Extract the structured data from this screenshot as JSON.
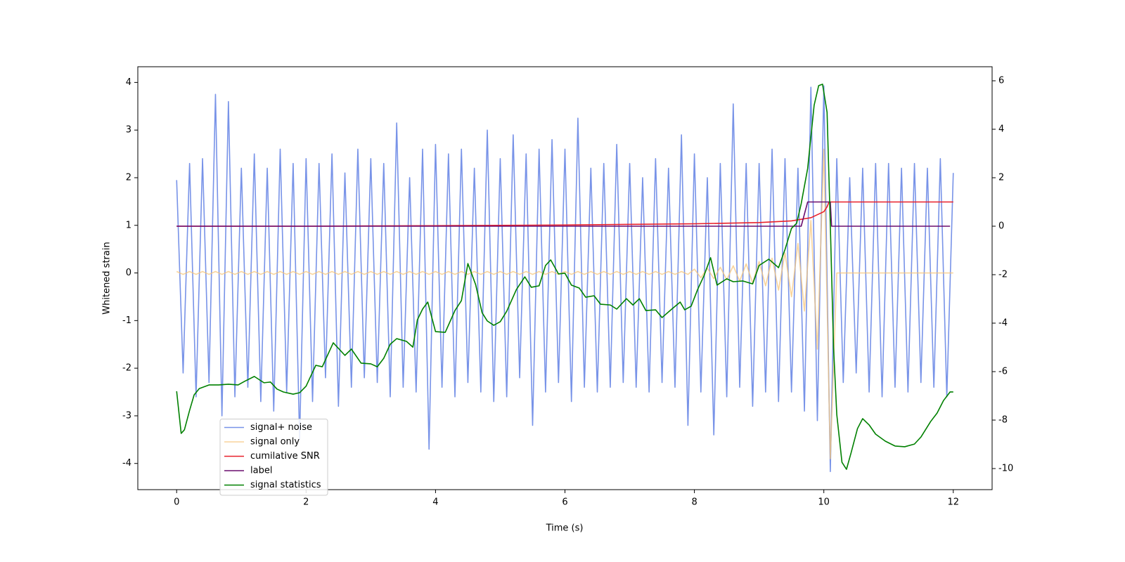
{
  "chart_data": {
    "type": "line",
    "xlabel": "Time (s)",
    "ylabel": "Whitened strain",
    "xlim": [
      -0.6,
      12.6
    ],
    "ylim": [
      -4.55,
      4.33
    ],
    "y2lim": [
      -10.87,
      6.58
    ],
    "xticks": [
      0,
      2,
      4,
      6,
      8,
      10,
      12
    ],
    "yticks": [
      -4,
      -3,
      -2,
      -1,
      0,
      1,
      2,
      3,
      4
    ],
    "y2ticks": [
      -10,
      -8,
      -6,
      -4,
      -2,
      0,
      2,
      4,
      6
    ],
    "legend": "lower left",
    "x": [
      0,
      0.1,
      0.2,
      0.3,
      0.4,
      0.5,
      0.6,
      0.7,
      0.8,
      0.9,
      1,
      1.1,
      1.2,
      1.3,
      1.4,
      1.5,
      1.6,
      1.7,
      1.8,
      1.9,
      2,
      2.1,
      2.2,
      2.3,
      2.4,
      2.5,
      2.6,
      2.7,
      2.8,
      2.9,
      3,
      3.1,
      3.2,
      3.3,
      3.4,
      3.5,
      3.6,
      3.7,
      3.8,
      3.9,
      4,
      4.1,
      4.2,
      4.3,
      4.4,
      4.5,
      4.6,
      4.7,
      4.8,
      4.9,
      5,
      5.1,
      5.2,
      5.3,
      5.4,
      5.5,
      5.6,
      5.7,
      5.8,
      5.9,
      6,
      6.1,
      6.2,
      6.3,
      6.4,
      6.5,
      6.6,
      6.7,
      6.8,
      6.9,
      7,
      7.1,
      7.2,
      7.3,
      7.4,
      7.5,
      7.6,
      7.7,
      7.8,
      7.9,
      8,
      8.1,
      8.2,
      8.3,
      8.4,
      8.5,
      8.6,
      8.7,
      8.8,
      8.9,
      9,
      9.1,
      9.2,
      9.3,
      9.4,
      9.5,
      9.6,
      9.7,
      9.8,
      9.9,
      10,
      10.1,
      10.2,
      10.3,
      10.4,
      10.5,
      10.6,
      10.7,
      10.8,
      10.9,
      11,
      11.1,
      11.2,
      11.3,
      11.4,
      11.5,
      11.6,
      11.7,
      11.8,
      11.9,
      12
    ],
    "series": [
      {
        "name": "signal+ noise",
        "color": "#7893e8",
        "values": [
          1.95,
          -2.1,
          2.3,
          -2.6,
          2.4,
          -2.3,
          3.75,
          -3.0,
          3.6,
          -2.6,
          2.2,
          -2.4,
          2.5,
          -2.7,
          2.2,
          -2.9,
          2.6,
          -2.5,
          2.3,
          -3.5,
          2.4,
          -2.7,
          2.3,
          -2.2,
          2.5,
          -2.8,
          2.1,
          -2.4,
          2.6,
          -2.2,
          2.4,
          -2.3,
          2.3,
          -2.6,
          3.15,
          -2.4,
          2.0,
          -2.5,
          2.6,
          -3.7,
          2.7,
          -2.4,
          2.5,
          -2.6,
          2.6,
          -2.3,
          2.2,
          -2.5,
          3.0,
          -2.7,
          2.4,
          -2.6,
          2.9,
          -2.2,
          2.5,
          -3.2,
          2.6,
          -2.5,
          2.8,
          -2.3,
          2.6,
          -2.7,
          3.25,
          -2.4,
          2.2,
          -2.5,
          2.3,
          -2.4,
          2.7,
          -2.3,
          2.3,
          -2.4,
          2.0,
          -2.5,
          2.4,
          -2.3,
          2.2,
          -2.4,
          2.9,
          -3.2,
          2.5,
          -2.5,
          2.0,
          -3.4,
          2.3,
          -2.6,
          3.55,
          -2.4,
          2.3,
          -2.8,
          2.3,
          -2.5,
          2.6,
          -2.7,
          2.4,
          -2.5,
          2.2,
          -2.9,
          3.9,
          -3.1,
          3.93,
          -4.17,
          2.4,
          -2.3,
          2.0,
          -2.1,
          2.2,
          -2.5,
          2.3,
          -2.6,
          2.3,
          -2.4,
          2.2,
          -2.5,
          2.3,
          -2.3,
          2.2,
          -2.4,
          2.4,
          -2.6,
          2.1
        ]
      },
      {
        "name": "signal only",
        "color": "#f7c57a",
        "values": [
          0.03,
          -0.03,
          0.03,
          -0.03,
          0.03,
          -0.03,
          0.03,
          -0.03,
          0.03,
          -0.03,
          0.03,
          -0.03,
          0.03,
          -0.03,
          0.03,
          -0.03,
          0.03,
          -0.03,
          0.03,
          -0.03,
          0.03,
          -0.03,
          0.03,
          -0.03,
          0.03,
          -0.03,
          0.03,
          -0.03,
          0.03,
          -0.03,
          0.03,
          -0.03,
          0.03,
          -0.03,
          0.03,
          -0.03,
          0.03,
          -0.03,
          0.03,
          -0.03,
          0.03,
          -0.03,
          0.03,
          -0.03,
          0.03,
          -0.03,
          0.03,
          -0.03,
          0.03,
          -0.03,
          0.03,
          -0.03,
          0.03,
          -0.03,
          0.03,
          -0.03,
          0.03,
          -0.03,
          0.03,
          -0.03,
          0.03,
          -0.03,
          0.03,
          -0.03,
          0.03,
          -0.03,
          0.03,
          -0.03,
          0.03,
          -0.03,
          0.03,
          -0.03,
          0.03,
          -0.03,
          0.03,
          -0.03,
          0.03,
          -0.03,
          0.03,
          -0.03,
          0.08,
          -0.1,
          0.1,
          -0.12,
          0.12,
          -0.14,
          0.15,
          -0.17,
          0.19,
          -0.21,
          0.24,
          -0.27,
          0.31,
          -0.36,
          0.42,
          -0.5,
          0.62,
          -0.8,
          1.1,
          -1.6,
          2.6,
          -3.9,
          0,
          0,
          0,
          0,
          0,
          0,
          0,
          0,
          0,
          0,
          0,
          0,
          0,
          0,
          0,
          0,
          0,
          0,
          0
        ]
      },
      {
        "name": "cumilative SNR",
        "color": "#e8202a",
        "axis": "y2",
        "x": [
          0,
          2,
          4,
          6,
          8,
          9,
          9.5,
          9.8,
          10,
          10.05,
          10.08,
          12
        ],
        "values": [
          0,
          0,
          0.02,
          0.05,
          0.1,
          0.15,
          0.22,
          0.35,
          0.6,
          0.8,
          1.0,
          1.0
        ]
      },
      {
        "name": "label",
        "color": "#6a0d6e",
        "axis": "y2",
        "x": [
          0,
          9.65,
          9.75,
          10.1,
          10.12,
          11.95
        ],
        "values": [
          0,
          0,
          1,
          1,
          0,
          0
        ]
      },
      {
        "name": "signal statistics",
        "color": "#008000",
        "axis": "y2",
        "x": [
          0,
          0.07,
          0.12,
          0.2,
          0.27,
          0.35,
          0.5,
          0.65,
          0.8,
          0.95,
          1.05,
          1.2,
          1.35,
          1.45,
          1.55,
          1.65,
          1.8,
          1.9,
          2.0,
          2.15,
          2.25,
          2.42,
          2.6,
          2.7,
          2.85,
          3.0,
          3.1,
          3.2,
          3.3,
          3.4,
          3.55,
          3.65,
          3.72,
          3.8,
          3.88,
          4.0,
          4.15,
          4.3,
          4.4,
          4.5,
          4.62,
          4.72,
          4.8,
          4.9,
          5.0,
          5.1,
          5.25,
          5.38,
          5.48,
          5.6,
          5.7,
          5.78,
          5.9,
          6.0,
          6.1,
          6.22,
          6.32,
          6.45,
          6.55,
          6.7,
          6.8,
          6.95,
          7.05,
          7.15,
          7.25,
          7.4,
          7.5,
          7.65,
          7.78,
          7.85,
          7.95,
          8.05,
          8.15,
          8.25,
          8.35,
          8.5,
          8.6,
          8.75,
          8.9,
          9.0,
          9.15,
          9.3,
          9.4,
          9.5,
          9.58,
          9.65,
          9.75,
          9.85,
          9.92,
          9.98,
          10.05,
          10.1,
          10.15,
          10.2,
          10.28,
          10.35,
          10.42,
          10.52,
          10.6,
          10.7,
          10.8,
          10.95,
          11.1,
          11.25,
          11.4,
          11.5,
          11.65,
          11.75,
          11.85,
          11.95,
          12.0
        ],
        "values": [
          -6.81,
          -8.55,
          -8.4,
          -7.6,
          -6.96,
          -6.7,
          -6.55,
          -6.55,
          -6.52,
          -6.55,
          -6.4,
          -6.2,
          -6.46,
          -6.43,
          -6.72,
          -6.84,
          -6.93,
          -6.87,
          -6.6,
          -5.74,
          -5.8,
          -4.81,
          -5.33,
          -5.07,
          -5.65,
          -5.68,
          -5.8,
          -5.45,
          -4.87,
          -4.64,
          -4.75,
          -4.99,
          -3.86,
          -3.42,
          -3.13,
          -4.35,
          -4.38,
          -3.48,
          -3.07,
          -1.54,
          -2.41,
          -3.57,
          -3.91,
          -4.09,
          -3.94,
          -3.51,
          -2.61,
          -2.09,
          -2.52,
          -2.46,
          -1.62,
          -1.39,
          -1.97,
          -1.94,
          -2.43,
          -2.55,
          -2.93,
          -2.87,
          -3.22,
          -3.25,
          -3.42,
          -2.99,
          -3.25,
          -2.99,
          -3.48,
          -3.45,
          -3.77,
          -3.42,
          -3.13,
          -3.45,
          -3.3,
          -2.61,
          -2.03,
          -1.3,
          -2.43,
          -2.17,
          -2.29,
          -2.26,
          -2.38,
          -1.62,
          -1.36,
          -1.71,
          -0.96,
          -0.09,
          0.12,
          0.93,
          2.38,
          4.99,
          5.8,
          5.86,
          4.7,
          0.06,
          -5.01,
          -7.77,
          -9.74,
          -10.03,
          -9.36,
          -8.35,
          -7.94,
          -8.2,
          -8.58,
          -8.87,
          -9.07,
          -9.1,
          -8.99,
          -8.7,
          -8.06,
          -7.71,
          -7.19,
          -6.84,
          -6.84
        ]
      }
    ]
  }
}
